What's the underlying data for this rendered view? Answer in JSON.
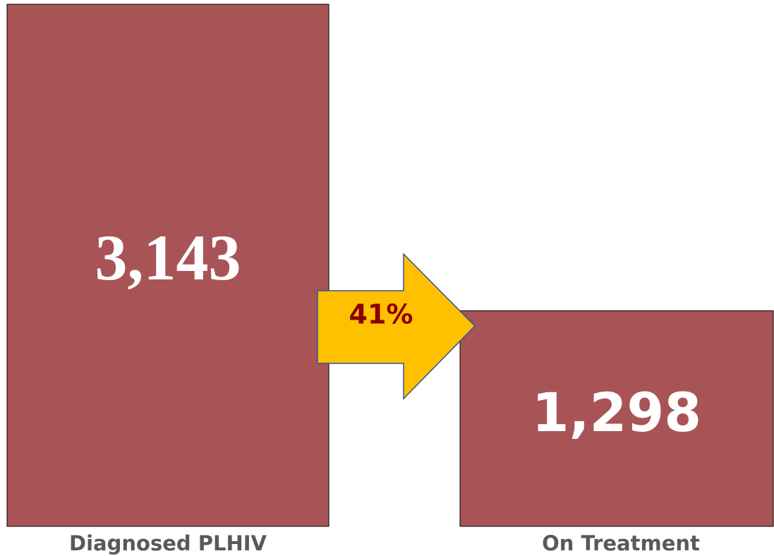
{
  "chart_data": {
    "type": "bar",
    "categories": [
      "Diagnosed PLHIV",
      "On Treatment"
    ],
    "values": [
      3143,
      1298
    ],
    "value_labels": [
      "3,143",
      "1,298"
    ],
    "color": "#a85456",
    "annotation": "41%"
  }
}
